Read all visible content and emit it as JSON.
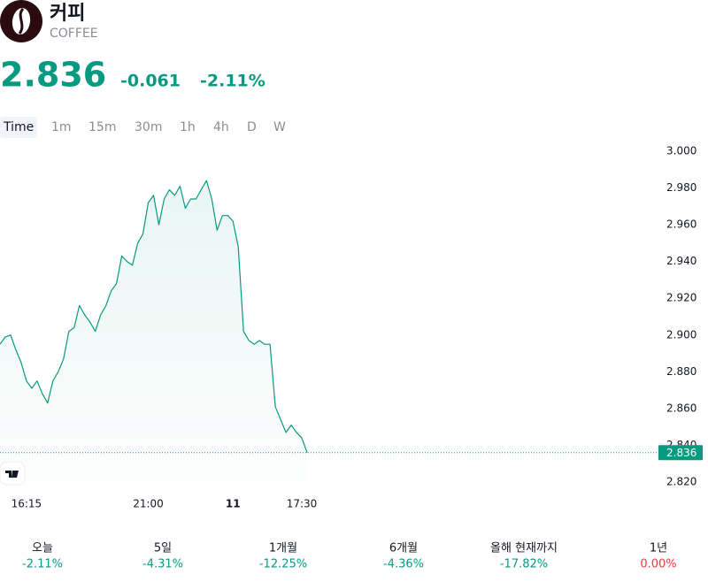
{
  "header": {
    "title": "커피",
    "subtitle": "COFFEE",
    "change": "-0.061",
    "change_percent": "-2.11%"
  },
  "timeframes": {
    "items": [
      "Time",
      "1m",
      "15m",
      "30m",
      "1h",
      "4h",
      "D",
      "W"
    ],
    "selected": 0
  },
  "chart_data": {
    "type": "line",
    "categories": [
      null,
      null,
      null,
      null,
      null,
      "16:15",
      null,
      null,
      null,
      null,
      null,
      null,
      null,
      null,
      null,
      null,
      null,
      null,
      null,
      null,
      null,
      null,
      null,
      null,
      null,
      null,
      null,
      null,
      "21:00",
      null,
      null,
      null,
      null,
      null,
      null,
      null,
      null,
      null,
      null,
      null,
      null,
      null,
      null,
      null,
      "11",
      null,
      null,
      null,
      null,
      null,
      null,
      null,
      null,
      null,
      null,
      null,
      null,
      "17:30",
      null
    ],
    "series": [
      {
        "name": "COFFEE",
        "color": "#089981",
        "values": [
          2.895,
          2.899,
          2.9,
          2.892,
          2.885,
          2.875,
          2.871,
          2.875,
          2.868,
          2.863,
          2.875,
          2.88,
          2.887,
          2.902,
          2.904,
          2.916,
          2.911,
          2.907,
          2.902,
          2.911,
          2.916,
          2.924,
          2.928,
          2.943,
          2.94,
          2.938,
          2.95,
          2.955,
          2.972,
          2.976,
          2.96,
          2.974,
          2.979,
          2.976,
          2.981,
          2.969,
          2.974,
          2.974,
          2.979,
          2.984,
          2.974,
          2.957,
          2.965,
          2.965,
          2.962,
          2.948,
          2.902,
          2.897,
          2.895,
          2.897,
          2.895,
          2.895,
          2.861,
          2.854,
          2.847,
          2.851,
          2.847,
          2.844,
          2.836
        ]
      }
    ],
    "last_price": 2.836,
    "ylim": [
      2.82,
      3.0
    ],
    "yticks": [
      {
        "value": 2.82,
        "label": "2.820"
      },
      {
        "value": 2.84,
        "label": "2.840"
      },
      {
        "value": 2.86,
        "label": "2.860"
      },
      {
        "value": 2.88,
        "label": "2.880"
      },
      {
        "value": 2.9,
        "label": "2.900"
      },
      {
        "value": 2.92,
        "label": "2.920"
      },
      {
        "value": 2.94,
        "label": "2.940"
      },
      {
        "value": 2.96,
        "label": "2.960"
      },
      {
        "value": 2.98,
        "label": "2.980"
      },
      {
        "value": 3.0,
        "label": "3.000"
      }
    ],
    "grid": false
  },
  "performance": [
    {
      "label": "오늘",
      "value": "-2.11%",
      "color": "#089981"
    },
    {
      "label": "5일",
      "value": "-4.31%",
      "color": "#089981"
    },
    {
      "label": "1개월",
      "value": "-12.25%",
      "color": "#089981"
    },
    {
      "label": "6개월",
      "value": "-4.36%",
      "color": "#089981"
    },
    {
      "label": "올해 현재까지",
      "value": "-17.82%",
      "color": "#089981"
    },
    {
      "label": "1년",
      "value": "0.00%",
      "color": "#f23645"
    }
  ]
}
